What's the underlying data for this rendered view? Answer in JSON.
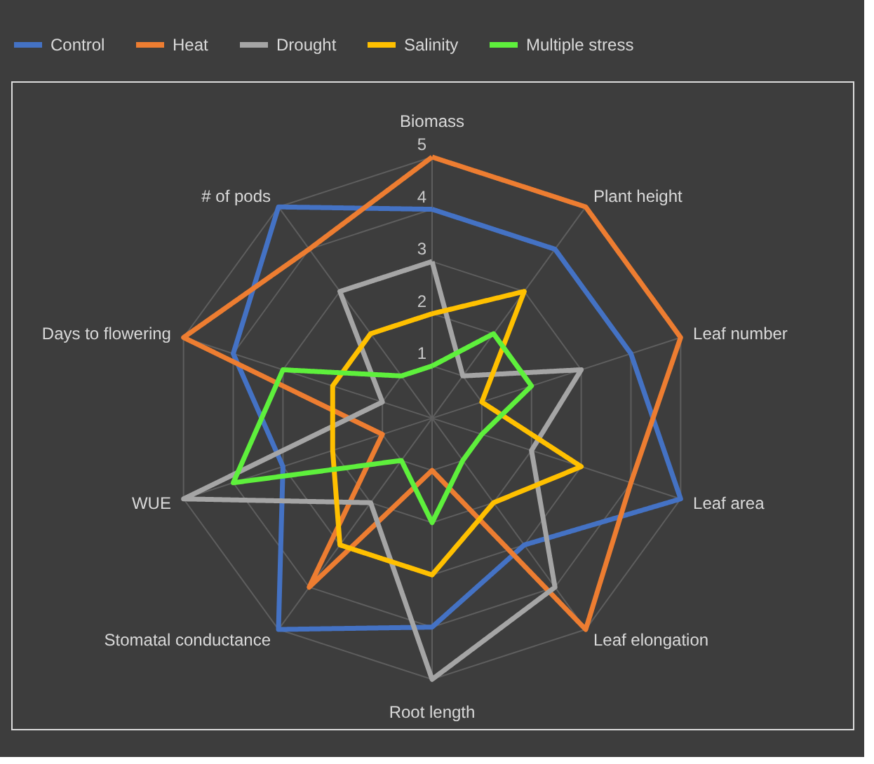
{
  "chart_data": {
    "type": "radar",
    "categories": [
      "Biomass",
      "Plant height",
      "Leaf number",
      "Leaf area",
      "Leaf elongation",
      "Root length",
      "Stomatal conductance",
      "WUE",
      "Days to flowering",
      "# of pods"
    ],
    "series": [
      {
        "name": "Control",
        "color": "#4472c4",
        "values": [
          4,
          4,
          4,
          5,
          3,
          4,
          5,
          3,
          4,
          5
        ]
      },
      {
        "name": "Heat",
        "color": "#ed7d31",
        "values": [
          5,
          5,
          5,
          4,
          5,
          1,
          4,
          1,
          5,
          4
        ]
      },
      {
        "name": "Drought",
        "color": "#a5a5a5",
        "values": [
          3,
          1,
          3,
          2,
          4,
          5,
          2,
          5,
          1,
          3
        ]
      },
      {
        "name": "Salinity",
        "color": "#ffc000",
        "values": [
          2,
          3,
          1,
          3,
          2,
          3,
          3,
          2,
          2,
          2
        ]
      },
      {
        "name": "Multiple stress",
        "color": "#5ef03c",
        "values": [
          1,
          2,
          2,
          1,
          1,
          2,
          1,
          4,
          3,
          1
        ]
      }
    ],
    "ylim": [
      0,
      5
    ],
    "yticks": [
      1,
      2,
      3,
      4,
      5
    ],
    "grid": true,
    "legend": "top",
    "line_style": "solid"
  }
}
